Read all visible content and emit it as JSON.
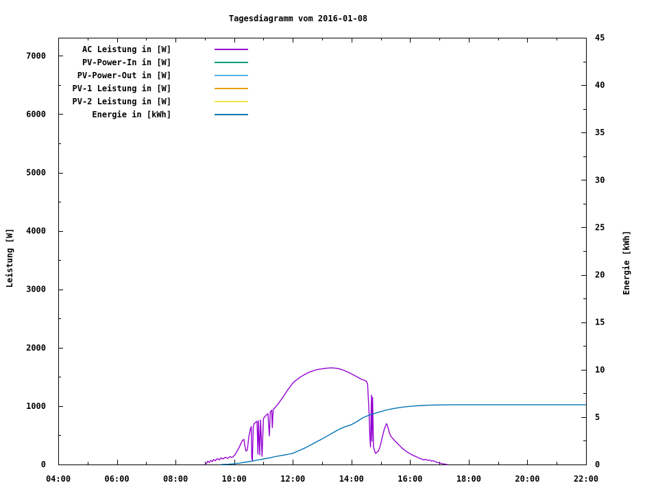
{
  "title": "Tagesdiagramm vom 2016-01-08",
  "chart_data": {
    "type": "line",
    "title": "Tagesdiagramm vom 2016-01-08",
    "grid": false,
    "legend_position": "top-left-inside",
    "x_axis": {
      "label": "",
      "range_hours": [
        4,
        22
      ],
      "major_tick_step_hours": 2,
      "minor_tick_step_hours": 1,
      "tick_labels": [
        "04:00",
        "06:00",
        "08:00",
        "10:00",
        "12:00",
        "14:00",
        "16:00",
        "18:00",
        "20:00",
        "22:00"
      ]
    },
    "y_axis_left": {
      "label": "Leistung [W]",
      "range": [
        0,
        7310
      ],
      "ticks": [
        0,
        1000,
        2000,
        3000,
        4000,
        5000,
        6000,
        7000
      ],
      "minor_step": 500
    },
    "y_axis_right": {
      "label": "Energie [kWh]",
      "range": [
        0,
        45
      ],
      "ticks": [
        0,
        5,
        10,
        15,
        20,
        25,
        30,
        35,
        40,
        45
      ],
      "minor_step": 2.5
    },
    "series": [
      {
        "label": "AC Leistung in [W]",
        "color": "#9400d3",
        "axis": "left",
        "visible": true,
        "points": [
          [
            9.0,
            0
          ],
          [
            9.05,
            20
          ],
          [
            9.1,
            55
          ],
          [
            9.15,
            35
          ],
          [
            9.2,
            70
          ],
          [
            9.25,
            50
          ],
          [
            9.3,
            85
          ],
          [
            9.35,
            65
          ],
          [
            9.42,
            100
          ],
          [
            9.5,
            80
          ],
          [
            9.55,
            115
          ],
          [
            9.62,
            95
          ],
          [
            9.7,
            125
          ],
          [
            9.78,
            105
          ],
          [
            9.85,
            135
          ],
          [
            9.92,
            120
          ],
          [
            10.0,
            150
          ],
          [
            10.05,
            185
          ],
          [
            10.1,
            230
          ],
          [
            10.17,
            290
          ],
          [
            10.22,
            350
          ],
          [
            10.28,
            410
          ],
          [
            10.33,
            430
          ],
          [
            10.37,
            300
          ],
          [
            10.4,
            230
          ],
          [
            10.45,
            250
          ],
          [
            10.5,
            480
          ],
          [
            10.55,
            600
          ],
          [
            10.58,
            650
          ],
          [
            10.6,
            120
          ],
          [
            10.62,
            60
          ],
          [
            10.65,
            640
          ],
          [
            10.68,
            700
          ],
          [
            10.73,
            720
          ],
          [
            10.78,
            740
          ],
          [
            10.81,
            180
          ],
          [
            10.83,
            750
          ],
          [
            10.87,
            165
          ],
          [
            10.9,
            760
          ],
          [
            10.95,
            140
          ],
          [
            11.0,
            790
          ],
          [
            11.05,
            820
          ],
          [
            11.1,
            850
          ],
          [
            11.15,
            870
          ],
          [
            11.2,
            490
          ],
          [
            11.23,
            900
          ],
          [
            11.28,
            930
          ],
          [
            11.3,
            630
          ],
          [
            11.33,
            940
          ],
          [
            11.4,
            980
          ],
          [
            11.47,
            1020
          ],
          [
            11.53,
            1060
          ],
          [
            11.6,
            1110
          ],
          [
            11.67,
            1160
          ],
          [
            11.75,
            1220
          ],
          [
            11.83,
            1280
          ],
          [
            11.92,
            1340
          ],
          [
            12.0,
            1395
          ],
          [
            12.08,
            1430
          ],
          [
            12.17,
            1465
          ],
          [
            12.25,
            1495
          ],
          [
            12.33,
            1520
          ],
          [
            12.42,
            1545
          ],
          [
            12.5,
            1565
          ],
          [
            12.58,
            1585
          ],
          [
            12.67,
            1600
          ],
          [
            12.75,
            1615
          ],
          [
            12.83,
            1625
          ],
          [
            12.92,
            1632
          ],
          [
            13.0,
            1638
          ],
          [
            13.08,
            1645
          ],
          [
            13.17,
            1650
          ],
          [
            13.25,
            1653
          ],
          [
            13.33,
            1655
          ],
          [
            13.42,
            1652
          ],
          [
            13.5,
            1648
          ],
          [
            13.58,
            1638
          ],
          [
            13.67,
            1625
          ],
          [
            13.75,
            1610
          ],
          [
            13.83,
            1592
          ],
          [
            13.92,
            1572
          ],
          [
            14.0,
            1552
          ],
          [
            14.08,
            1530
          ],
          [
            14.17,
            1508
          ],
          [
            14.25,
            1485
          ],
          [
            14.33,
            1462
          ],
          [
            14.42,
            1445
          ],
          [
            14.5,
            1430
          ],
          [
            14.55,
            1380
          ],
          [
            14.6,
            900
          ],
          [
            14.63,
            450
          ],
          [
            14.65,
            300
          ],
          [
            14.68,
            1190
          ],
          [
            14.7,
            400
          ],
          [
            14.72,
            1150
          ],
          [
            14.75,
            300
          ],
          [
            14.78,
            250
          ],
          [
            14.82,
            190
          ],
          [
            14.87,
            210
          ],
          [
            14.92,
            230
          ],
          [
            14.97,
            300
          ],
          [
            15.03,
            420
          ],
          [
            15.08,
            530
          ],
          [
            15.13,
            620
          ],
          [
            15.17,
            670
          ],
          [
            15.2,
            700
          ],
          [
            15.23,
            660
          ],
          [
            15.27,
            590
          ],
          [
            15.3,
            530
          ],
          [
            15.35,
            480
          ],
          [
            15.4,
            450
          ],
          [
            15.47,
            410
          ],
          [
            15.53,
            380
          ],
          [
            15.6,
            345
          ],
          [
            15.67,
            310
          ],
          [
            15.73,
            280
          ],
          [
            15.8,
            250
          ],
          [
            15.87,
            225
          ],
          [
            15.93,
            205
          ],
          [
            16.0,
            185
          ],
          [
            16.07,
            165
          ],
          [
            16.13,
            150
          ],
          [
            16.2,
            135
          ],
          [
            16.27,
            118
          ],
          [
            16.33,
            105
          ],
          [
            16.4,
            92
          ],
          [
            16.47,
            80
          ],
          [
            16.53,
            88
          ],
          [
            16.6,
            70
          ],
          [
            16.67,
            78
          ],
          [
            16.73,
            58
          ],
          [
            16.8,
            65
          ],
          [
            16.87,
            45
          ],
          [
            16.93,
            35
          ],
          [
            17.0,
            25
          ],
          [
            17.07,
            18
          ],
          [
            17.13,
            10
          ],
          [
            17.2,
            5
          ],
          [
            17.27,
            0
          ]
        ]
      },
      {
        "label": "PV-Power-In in [W]",
        "color": "#009e73",
        "axis": "left",
        "visible": false,
        "points": []
      },
      {
        "label": "PV-Power-Out in [W]",
        "color": "#56b4e9",
        "axis": "left",
        "visible": false,
        "points": []
      },
      {
        "label": "PV-1 Leistung in [W]",
        "color": "#e69f00",
        "axis": "left",
        "visible": false,
        "points": []
      },
      {
        "label": "PV-2 Leistung in [W]",
        "color": "#f0e442",
        "axis": "left",
        "visible": false,
        "points": []
      },
      {
        "label": "Energie in [kWh]",
        "color": "#0072b2",
        "axis": "right",
        "visible": true,
        "points": [
          [
            9.55,
            0
          ],
          [
            9.8,
            0.03
          ],
          [
            10.0,
            0.08
          ],
          [
            10.2,
            0.15
          ],
          [
            10.4,
            0.25
          ],
          [
            10.6,
            0.35
          ],
          [
            10.8,
            0.47
          ],
          [
            11.0,
            0.58
          ],
          [
            11.2,
            0.7
          ],
          [
            11.4,
            0.83
          ],
          [
            11.6,
            0.95
          ],
          [
            11.8,
            1.05
          ],
          [
            12.0,
            1.18
          ],
          [
            12.2,
            1.45
          ],
          [
            12.4,
            1.72
          ],
          [
            12.6,
            2.05
          ],
          [
            12.8,
            2.38
          ],
          [
            13.0,
            2.7
          ],
          [
            13.2,
            3.05
          ],
          [
            13.4,
            3.4
          ],
          [
            13.6,
            3.75
          ],
          [
            13.8,
            4.0
          ],
          [
            14.0,
            4.2
          ],
          [
            14.2,
            4.55
          ],
          [
            14.4,
            4.95
          ],
          [
            14.6,
            5.2
          ],
          [
            14.8,
            5.4
          ],
          [
            15.0,
            5.58
          ],
          [
            15.2,
            5.75
          ],
          [
            15.4,
            5.88
          ],
          [
            15.6,
            5.98
          ],
          [
            15.8,
            6.07
          ],
          [
            16.0,
            6.13
          ],
          [
            16.2,
            6.18
          ],
          [
            16.4,
            6.22
          ],
          [
            16.6,
            6.25
          ],
          [
            16.8,
            6.27
          ],
          [
            17.0,
            6.28
          ],
          [
            17.5,
            6.3
          ],
          [
            18.0,
            6.3
          ],
          [
            19.0,
            6.3
          ],
          [
            20.0,
            6.3
          ],
          [
            21.0,
            6.3
          ],
          [
            22.0,
            6.3
          ]
        ]
      }
    ]
  }
}
